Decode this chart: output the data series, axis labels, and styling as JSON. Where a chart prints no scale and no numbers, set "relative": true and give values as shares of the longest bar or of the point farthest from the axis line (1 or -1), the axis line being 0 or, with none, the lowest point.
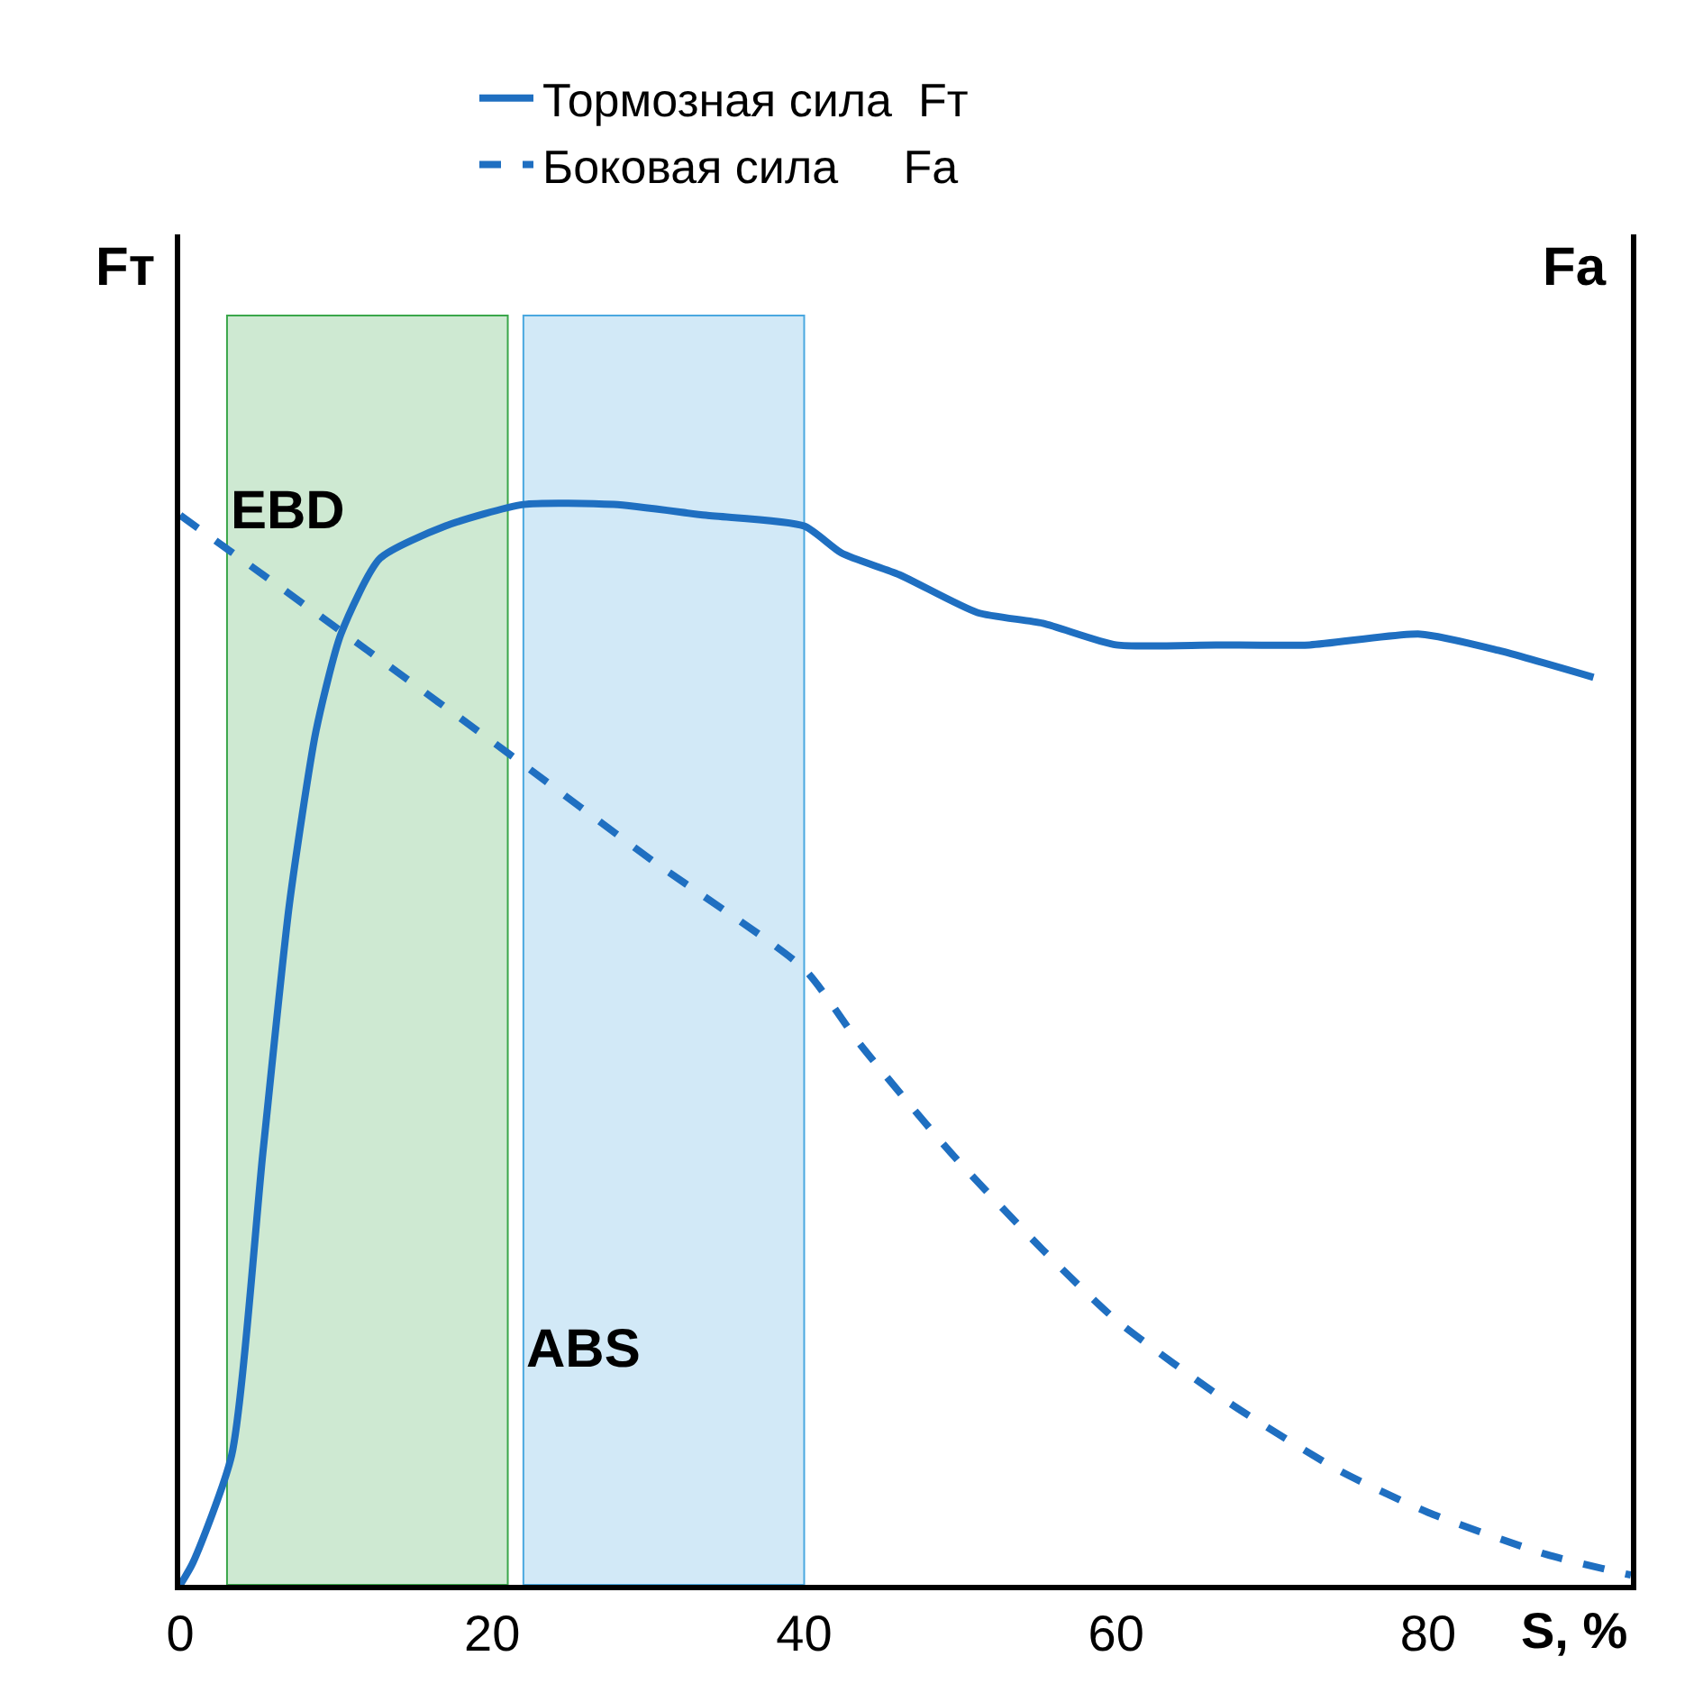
{
  "chart_data": {
    "type": "line",
    "relative": true,
    "xlabel": "S, %",
    "ylabel": "Fт",
    "y2label": "Fa",
    "xlim": [
      0,
      93
    ],
    "xticks": [
      0,
      20,
      40,
      60,
      80
    ],
    "legend": "top",
    "grid": false,
    "series": [
      {
        "name": "Тормозная сила  Fт",
        "color": "#1f6fc1",
        "line_style": "solid",
        "x": [
          0,
          0.8,
          3.3,
          5.3,
          7,
          8.7,
          10.3,
          12.8,
          17,
          22,
          27.8,
          33.7,
          40,
          42.4,
          46.1,
          51.1,
          55.3,
          60,
          66.4,
          72.4,
          79.5,
          84.5,
          90.6
        ],
        "values": [
          0,
          0.02,
          0.12,
          0.4,
          0.63,
          0.79,
          0.88,
          0.95,
          0.98,
          1.0,
          1.0,
          0.99,
          0.98,
          0.955,
          0.935,
          0.9,
          0.89,
          0.87,
          0.87,
          0.87,
          0.88,
          0.865,
          0.84
        ]
      },
      {
        "name": "Боковая сила     Fa",
        "color": "#1f6fc1",
        "line_style": "dashed",
        "x": [
          0,
          5.3,
          12,
          21,
          30.3,
          40,
          43.6,
          49.4,
          55.3,
          60,
          67.4,
          74.4,
          80,
          87.6,
          93
        ],
        "values": [
          0.99,
          0.935,
          0.865,
          0.77,
          0.67,
          0.57,
          0.5,
          0.4,
          0.31,
          0.245,
          0.167,
          0.105,
          0.067,
          0.028,
          0.009
        ]
      }
    ],
    "bands": [
      {
        "axis": "x",
        "from": 3,
        "to": 21,
        "label": "EBD",
        "color": "#3aa64a"
      },
      {
        "axis": "x",
        "from": 22,
        "to": 40,
        "label": "ABS",
        "color": "#4aa8e0"
      }
    ]
  }
}
